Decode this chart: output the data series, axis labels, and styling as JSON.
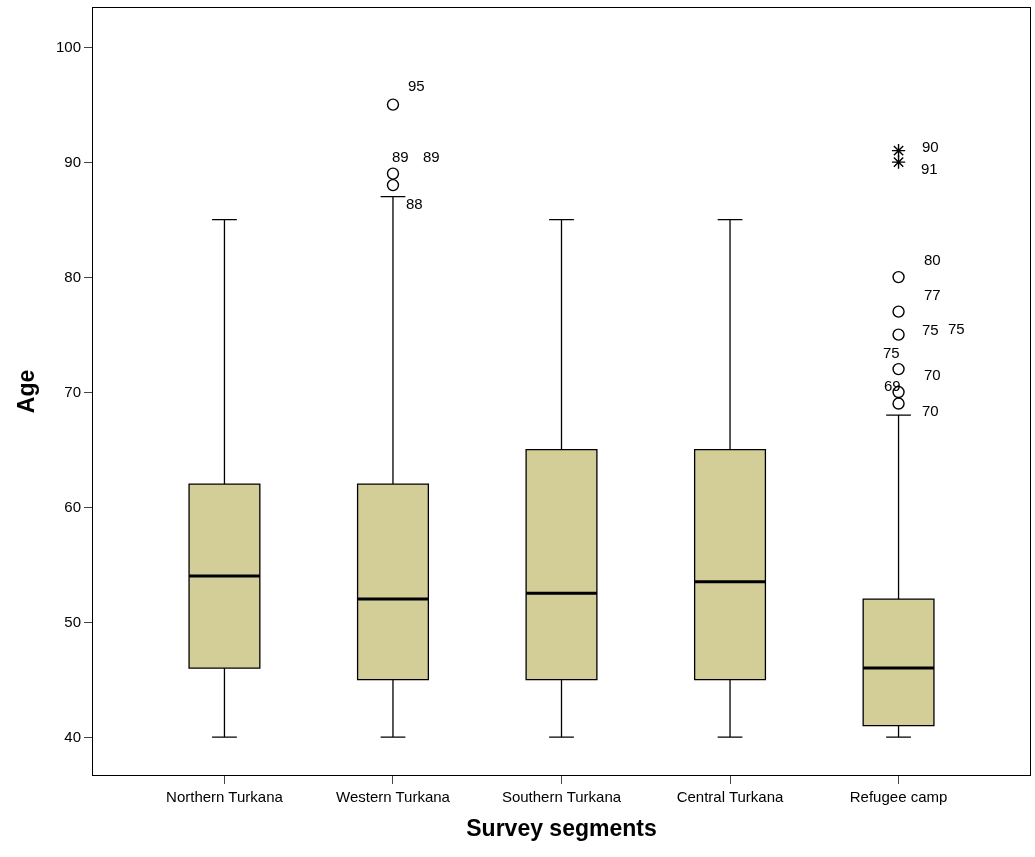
{
  "chart_data": {
    "type": "box",
    "xlabel": "Survey segments",
    "ylabel": "Age",
    "categories": [
      "Northern Turkana",
      "Western Turkana",
      "Southern Turkana",
      "Central Turkana",
      "Refugee camp"
    ],
    "color": "#d3ce97",
    "boxes": [
      {
        "low": 40,
        "q1": 46,
        "median": 54,
        "q3": 62,
        "high": 85
      },
      {
        "low": 40,
        "q1": 45,
        "median": 52,
        "q3": 62,
        "high": 87,
        "outliers": [
          88,
          89,
          95
        ]
      },
      {
        "low": 40,
        "q1": 45,
        "median": 52.5,
        "q3": 65,
        "high": 85
      },
      {
        "low": 40,
        "q1": 45,
        "median": 53.5,
        "q3": 65,
        "high": 85
      },
      {
        "low": 40,
        "q1": 41,
        "median": 46,
        "q3": 52,
        "high": 68,
        "outliers": [
          69,
          70,
          72,
          75,
          77,
          80,
          90,
          91
        ]
      }
    ],
    "ylim": [
      36.7,
      103.4
    ],
    "yticks": [
      40,
      50,
      60,
      70,
      80,
      90,
      100
    ],
    "annotations": [
      "95",
      "89",
      "89",
      "88",
      "90",
      "91",
      "80",
      "77",
      "75",
      "75",
      "75",
      "70",
      "69",
      "70"
    ]
  }
}
